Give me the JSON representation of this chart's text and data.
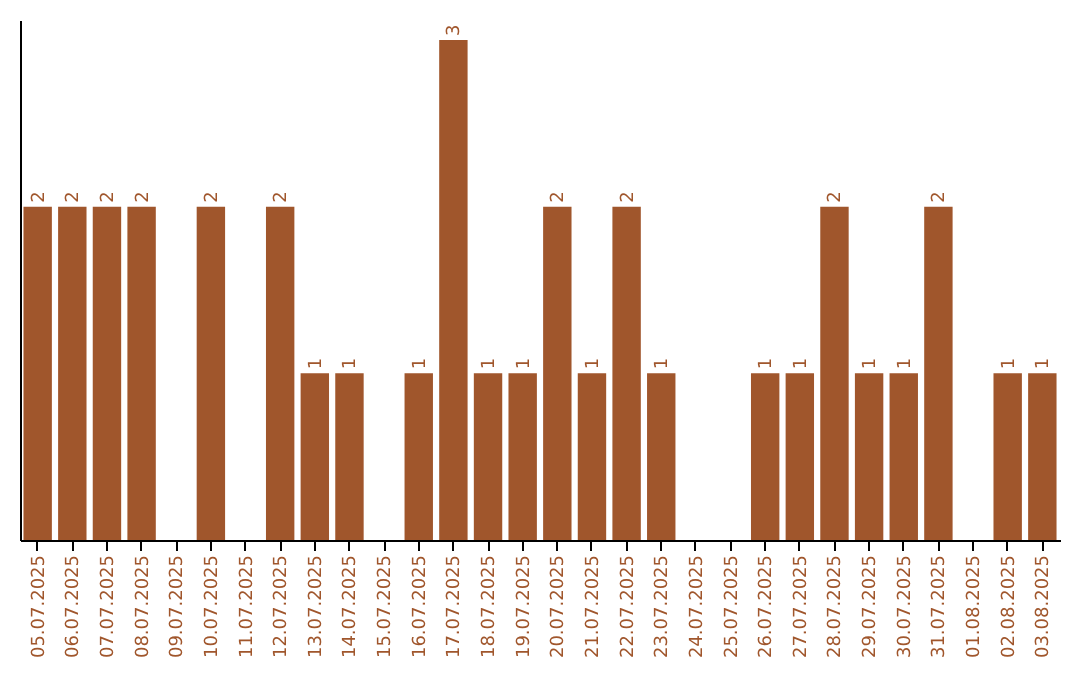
{
  "chart_data": {
    "type": "bar",
    "categories": [
      "05.07.2025",
      "06.07.2025",
      "07.07.2025",
      "08.07.2025",
      "09.07.2025",
      "10.07.2025",
      "11.07.2025",
      "12.07.2025",
      "13.07.2025",
      "14.07.2025",
      "15.07.2025",
      "16.07.2025",
      "17.07.2025",
      "18.07.2025",
      "19.07.2025",
      "20.07.2025",
      "21.07.2025",
      "22.07.2025",
      "23.07.2025",
      "24.07.2025",
      "25.07.2025",
      "26.07.2025",
      "27.07.2025",
      "28.07.2025",
      "29.07.2025",
      "30.07.2025",
      "31.07.2025",
      "01.08.2025",
      "02.08.2025",
      "03.08.2025"
    ],
    "values": [
      2,
      2,
      2,
      2,
      0,
      2,
      0,
      2,
      1,
      1,
      0,
      1,
      3,
      1,
      1,
      2,
      1,
      2,
      1,
      0,
      0,
      1,
      1,
      2,
      1,
      1,
      2,
      0,
      1,
      1
    ],
    "value_labels": [
      "2",
      "2",
      "2",
      "2",
      null,
      "2",
      null,
      "2",
      "1",
      "1",
      null,
      "1",
      "3",
      "1",
      "1",
      "2",
      "1",
      "2",
      "1",
      null,
      null,
      "1",
      "1",
      "2",
      "1",
      "1",
      "2",
      null,
      "1",
      "1"
    ],
    "color": "#a0562c",
    "ylim": [
      0,
      3.12
    ],
    "tick_labels": "x",
    "grid": false
  }
}
